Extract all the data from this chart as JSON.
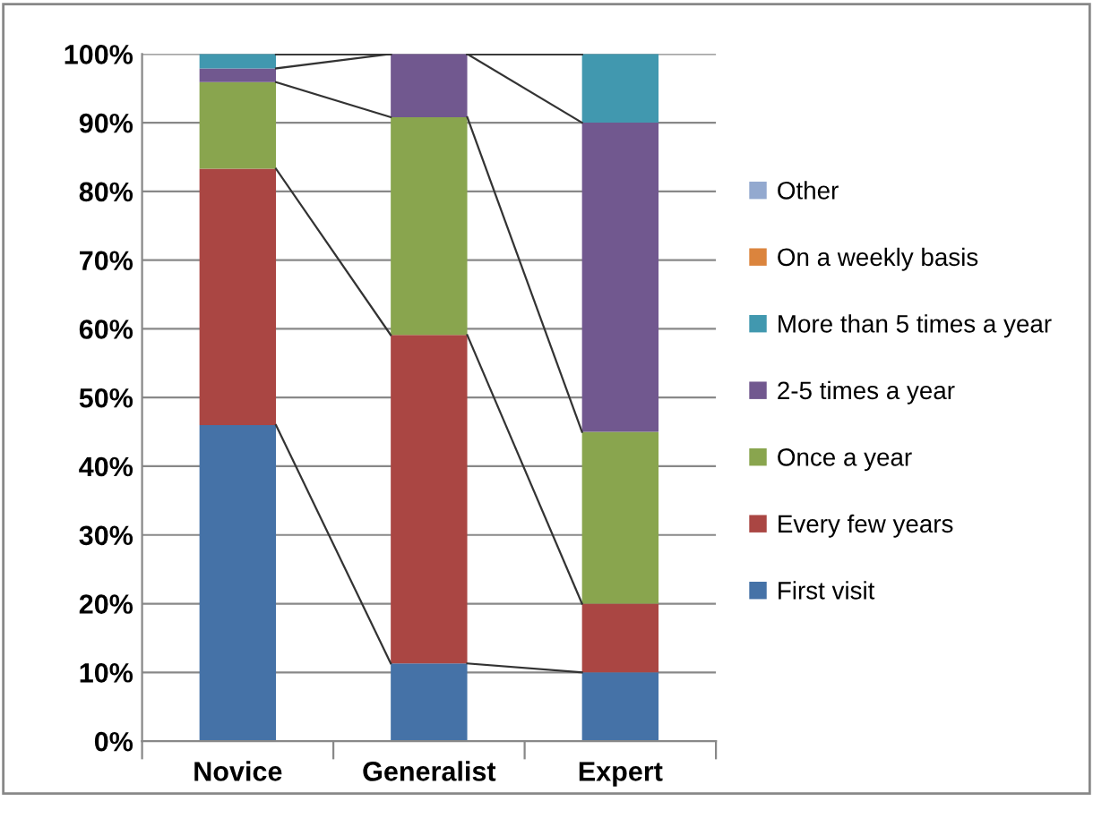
{
  "chart_data": {
    "type": "bar",
    "stacked": true,
    "categories": [
      "Novice",
      "Generalist",
      "Expert"
    ],
    "series": [
      {
        "name": "First visit",
        "color": "#4572a7",
        "values": [
          46,
          11.3,
          10
        ]
      },
      {
        "name": "Every few years",
        "color": "#aa4643",
        "values": [
          37.3,
          47.8,
          10
        ]
      },
      {
        "name": "Once a year",
        "color": "#89a54e",
        "values": [
          12.6,
          31.7,
          25
        ]
      },
      {
        "name": "2-5 times a year",
        "color": "#71588f",
        "values": [
          2,
          9.2,
          45
        ]
      },
      {
        "name": "More than 5 times a year",
        "color": "#4198af",
        "values": [
          2.1,
          0,
          10
        ]
      },
      {
        "name": "On a weekly basis",
        "color": "#db843d",
        "values": [
          0,
          0,
          0
        ]
      },
      {
        "name": "Other",
        "color": "#93a9cf",
        "values": [
          0,
          0,
          0
        ]
      }
    ],
    "ylim": [
      0,
      100
    ],
    "yticks": [
      {
        "value": 0,
        "label": "0%"
      },
      {
        "value": 10,
        "label": "10%"
      },
      {
        "value": 20,
        "label": "20%"
      },
      {
        "value": 30,
        "label": "30%"
      },
      {
        "value": 40,
        "label": "40%"
      },
      {
        "value": 50,
        "label": "50%"
      },
      {
        "value": 60,
        "label": "60%"
      },
      {
        "value": 70,
        "label": "70%"
      },
      {
        "value": 80,
        "label": "80%"
      },
      {
        "value": 90,
        "label": "90%"
      },
      {
        "value": 100,
        "label": "100%"
      }
    ],
    "grid": "y",
    "legend": "right"
  }
}
